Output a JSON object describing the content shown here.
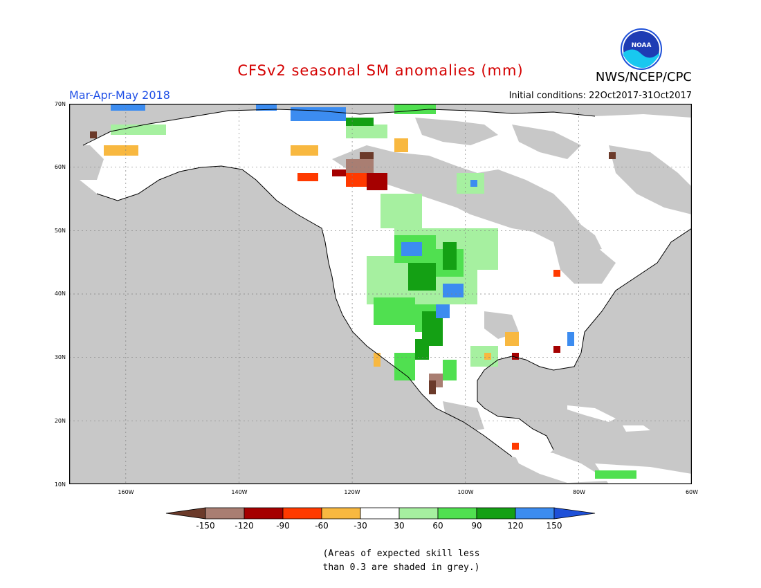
{
  "title": "CFSv2 seasonal SM anomalies (mm)",
  "season": "Mar-Apr-May 2018",
  "initial_conditions": "Initial conditions: 22Oct2017-31Oct2017",
  "agency": "NWS/NCEP/CPC",
  "logo_text": "NOAA",
  "skill_note_line1": "(Areas of expected skill less",
  "skill_note_line2": "than 0.3 are shaded in grey.)",
  "lat_labels": [
    "70N",
    "60N",
    "50N",
    "40N",
    "30N",
    "20N",
    "10N"
  ],
  "lon_labels": [
    "160W",
    "140W",
    "120W",
    "100W",
    "80W",
    "60W"
  ],
  "colorbar": {
    "labels": [
      "-150",
      "-120",
      "-90",
      "-60",
      "-30",
      "30",
      "60",
      "90",
      "120",
      "150"
    ],
    "colors": {
      "below_-150": "#6b3a2a",
      "-150_-120": "#a97e72",
      "-120_-90": "#a50000",
      "-90_-60": "#ff3a00",
      "-60_-30": "#f8b840",
      "-30_30": "#ffffff",
      "30_60": "#a6f0a0",
      "60_90": "#50e050",
      "90_120": "#14a014",
      "120_150": "#3c8cf0",
      "above_150": "#1e50d8"
    }
  },
  "map_colors": {
    "skill_grey": "#c8c8c8",
    "ocean_grey": "#c8c8c8",
    "land_white": "#ffffff"
  }
}
